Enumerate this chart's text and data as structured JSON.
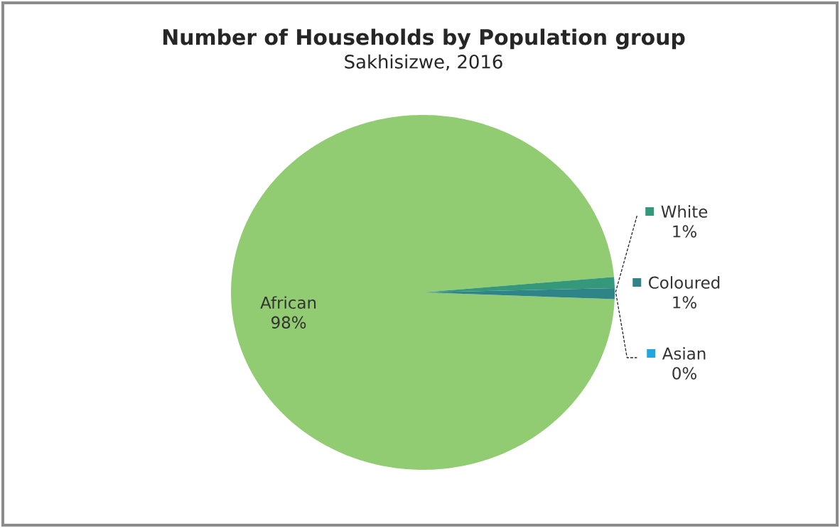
{
  "chart_data": {
    "type": "pie",
    "title": "Number of Households by Population group",
    "subtitle": "Sakhisizwe, 2016",
    "categories": [
      "African",
      "White",
      "Coloured",
      "Asian"
    ],
    "values": [
      98,
      1,
      1,
      0
    ],
    "value_labels": [
      "98%",
      "1%",
      "1%",
      "0%"
    ],
    "colors": [
      "#92cc72",
      "#35987a",
      "#2f8488",
      "#22a6df"
    ],
    "legend": "right"
  }
}
